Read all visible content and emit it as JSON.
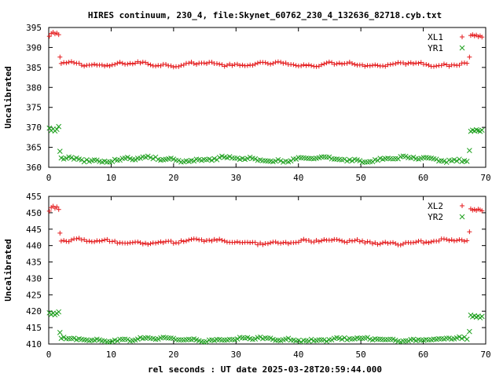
{
  "figure": {
    "title": "HIRES continuum, 230_4, file:Skynet_60762_230_4_132636_82718.cyb.txt",
    "xlabel": "rel seconds : UT date 2025-03-28T20:59:44.000"
  },
  "chart_data": [
    {
      "type": "scatter",
      "ylabel": "Uncalibrated",
      "xlim": [
        0,
        70
      ],
      "ylim": [
        360,
        395
      ],
      "xticks": [
        0,
        10,
        20,
        30,
        40,
        50,
        60,
        70
      ],
      "yticks": [
        360,
        365,
        370,
        375,
        380,
        385,
        390,
        395
      ],
      "legend_position": "top-right",
      "series": [
        {
          "name": "XL1",
          "marker": "plus",
          "color": "#e41a1c",
          "plateau": {
            "x_start": 2.0,
            "x_end": 67.0,
            "y": 385.8,
            "waves": [
              {
                "amp": 0.35,
                "period": 11.0
              },
              {
                "amp": 0.2,
                "period": 3.7
              }
            ],
            "noise": 0.25,
            "n": 160
          },
          "edge_points": [
            {
              "x": 0.1,
              "y": 392.8
            },
            {
              "x": 0.4,
              "y": 393.5
            },
            {
              "x": 0.7,
              "y": 393.8
            },
            {
              "x": 1.0,
              "y": 393.4
            },
            {
              "x": 1.3,
              "y": 393.6
            },
            {
              "x": 1.6,
              "y": 393.2
            },
            {
              "x": 1.8,
              "y": 387.6
            },
            {
              "x": 67.4,
              "y": 387.6
            },
            {
              "x": 67.6,
              "y": 393.0
            },
            {
              "x": 67.9,
              "y": 393.2
            },
            {
              "x": 68.2,
              "y": 392.9
            },
            {
              "x": 68.5,
              "y": 393.1
            },
            {
              "x": 68.8,
              "y": 392.7
            },
            {
              "x": 69.1,
              "y": 392.9
            },
            {
              "x": 69.4,
              "y": 392.6
            }
          ]
        },
        {
          "name": "YR1",
          "marker": "cross",
          "color": "#1fa01f",
          "plateau": {
            "x_start": 2.0,
            "x_end": 67.0,
            "y": 362.0,
            "waves": [
              {
                "amp": 0.45,
                "period": 14.0
              },
              {
                "amp": 0.2,
                "period": 4.1
              }
            ],
            "noise": 0.3,
            "n": 160
          },
          "edge_points": [
            {
              "x": 0.1,
              "y": 369.8
            },
            {
              "x": 0.4,
              "y": 369.2
            },
            {
              "x": 0.7,
              "y": 369.6
            },
            {
              "x": 1.0,
              "y": 369.1
            },
            {
              "x": 1.3,
              "y": 369.5
            },
            {
              "x": 1.6,
              "y": 370.2
            },
            {
              "x": 1.8,
              "y": 364.0
            },
            {
              "x": 67.4,
              "y": 364.2
            },
            {
              "x": 67.6,
              "y": 369.0
            },
            {
              "x": 67.9,
              "y": 369.3
            },
            {
              "x": 68.2,
              "y": 369.1
            },
            {
              "x": 68.5,
              "y": 369.4
            },
            {
              "x": 68.8,
              "y": 369.2
            },
            {
              "x": 69.1,
              "y": 369.0
            },
            {
              "x": 69.4,
              "y": 369.3
            }
          ]
        }
      ]
    },
    {
      "type": "scatter",
      "ylabel": "Uncalibrated",
      "xlim": [
        0,
        70
      ],
      "ylim": [
        410,
        455
      ],
      "xticks": [
        0,
        10,
        20,
        30,
        40,
        50,
        60,
        70
      ],
      "yticks": [
        410,
        415,
        420,
        425,
        430,
        435,
        440,
        445,
        450,
        455
      ],
      "legend_position": "top-right",
      "series": [
        {
          "name": "XL2",
          "marker": "plus",
          "color": "#e41a1c",
          "plateau": {
            "x_start": 2.0,
            "x_end": 67.0,
            "y": 441.2,
            "waves": [
              {
                "amp": 0.5,
                "period": 20.0
              },
              {
                "amp": 0.25,
                "period": 4.5
              }
            ],
            "noise": 0.35,
            "n": 160
          },
          "edge_points": [
            {
              "x": 0.1,
              "y": 450.5
            },
            {
              "x": 0.4,
              "y": 451.6
            },
            {
              "x": 0.7,
              "y": 452.0
            },
            {
              "x": 1.0,
              "y": 451.4
            },
            {
              "x": 1.3,
              "y": 451.8
            },
            {
              "x": 1.6,
              "y": 451.0
            },
            {
              "x": 1.8,
              "y": 443.8
            },
            {
              "x": 67.4,
              "y": 444.2
            },
            {
              "x": 67.6,
              "y": 451.2
            },
            {
              "x": 67.9,
              "y": 450.8
            },
            {
              "x": 68.2,
              "y": 451.0
            },
            {
              "x": 68.5,
              "y": 450.7
            },
            {
              "x": 68.8,
              "y": 451.1
            },
            {
              "x": 69.1,
              "y": 450.9
            },
            {
              "x": 69.4,
              "y": 450.6
            }
          ]
        },
        {
          "name": "YR2",
          "marker": "cross",
          "color": "#1fa01f",
          "plateau": {
            "x_start": 2.0,
            "x_end": 67.0,
            "y": 411.4,
            "waves": [
              {
                "amp": 0.4,
                "period": 16.0
              },
              {
                "amp": 0.2,
                "period": 3.9
              }
            ],
            "noise": 0.3,
            "n": 160
          },
          "edge_points": [
            {
              "x": 0.1,
              "y": 419.5
            },
            {
              "x": 0.4,
              "y": 419.0
            },
            {
              "x": 0.7,
              "y": 419.4
            },
            {
              "x": 1.0,
              "y": 418.9
            },
            {
              "x": 1.3,
              "y": 419.3
            },
            {
              "x": 1.6,
              "y": 419.8
            },
            {
              "x": 1.8,
              "y": 413.5
            },
            {
              "x": 67.4,
              "y": 413.8
            },
            {
              "x": 67.6,
              "y": 418.8
            },
            {
              "x": 67.9,
              "y": 418.3
            },
            {
              "x": 68.2,
              "y": 418.6
            },
            {
              "x": 68.5,
              "y": 418.2
            },
            {
              "x": 68.8,
              "y": 418.5
            },
            {
              "x": 69.1,
              "y": 418.0
            },
            {
              "x": 69.4,
              "y": 418.4
            }
          ]
        }
      ]
    }
  ]
}
